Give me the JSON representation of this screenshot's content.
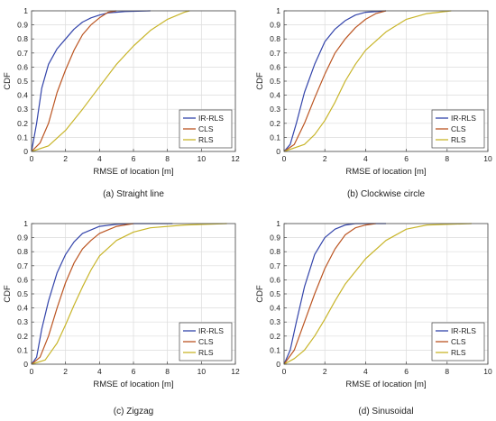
{
  "chart_data": [
    {
      "type": "line",
      "caption": "(a) Straight line",
      "xlabel": "RMSE of location [m]",
      "ylabel": "CDF",
      "xlim": [
        0,
        12
      ],
      "ylim": [
        0,
        1
      ],
      "xticks": [
        0,
        2,
        4,
        6,
        8,
        10,
        12
      ],
      "yticks": [
        0,
        0.1,
        0.2,
        0.3,
        0.4,
        0.5,
        0.6,
        0.7,
        0.8,
        0.9,
        1
      ],
      "grid": true,
      "legend_position": "bottom-right",
      "series": [
        {
          "name": "IR-RLS",
          "color": "#3344aa",
          "points": [
            [
              0,
              0
            ],
            [
              0.3,
              0.2
            ],
            [
              0.6,
              0.45
            ],
            [
              1.0,
              0.62
            ],
            [
              1.5,
              0.73
            ],
            [
              2.0,
              0.8
            ],
            [
              2.5,
              0.87
            ],
            [
              3.0,
              0.92
            ],
            [
              3.5,
              0.95
            ],
            [
              4.0,
              0.97
            ],
            [
              4.5,
              0.985
            ],
            [
              5.5,
              0.995
            ],
            [
              7.0,
              1.0
            ]
          ]
        },
        {
          "name": "CLS",
          "color": "#bb5522",
          "points": [
            [
              0,
              0
            ],
            [
              0.5,
              0.06
            ],
            [
              1.0,
              0.2
            ],
            [
              1.5,
              0.42
            ],
            [
              2.0,
              0.58
            ],
            [
              2.5,
              0.72
            ],
            [
              3.0,
              0.83
            ],
            [
              3.5,
              0.9
            ],
            [
              4.0,
              0.95
            ],
            [
              4.5,
              0.99
            ],
            [
              5.0,
              1.0
            ]
          ]
        },
        {
          "name": "RLS",
          "color": "#c8b52a",
          "points": [
            [
              0,
              0
            ],
            [
              1.0,
              0.04
            ],
            [
              2.0,
              0.15
            ],
            [
              3.0,
              0.3
            ],
            [
              4.0,
              0.46
            ],
            [
              5.0,
              0.62
            ],
            [
              6.0,
              0.75
            ],
            [
              7.0,
              0.86
            ],
            [
              8.0,
              0.94
            ],
            [
              9.0,
              0.99
            ],
            [
              9.3,
              1.0
            ]
          ]
        }
      ]
    },
    {
      "type": "line",
      "caption": "(b) Clockwise circle",
      "xlabel": "RMSE of location [m]",
      "ylabel": "CDF",
      "xlim": [
        0,
        10
      ],
      "ylim": [
        0,
        1
      ],
      "xticks": [
        0,
        2,
        4,
        6,
        8,
        10
      ],
      "yticks": [
        0,
        0.1,
        0.2,
        0.3,
        0.4,
        0.5,
        0.6,
        0.7,
        0.8,
        0.9,
        1
      ],
      "grid": true,
      "legend_position": "bottom-right",
      "series": [
        {
          "name": "IR-RLS",
          "color": "#3344aa",
          "points": [
            [
              0,
              0
            ],
            [
              0.3,
              0.05
            ],
            [
              0.6,
              0.2
            ],
            [
              1.0,
              0.42
            ],
            [
              1.5,
              0.62
            ],
            [
              2.0,
              0.78
            ],
            [
              2.5,
              0.87
            ],
            [
              3.0,
              0.93
            ],
            [
              3.5,
              0.97
            ],
            [
              4.0,
              0.99
            ],
            [
              5.0,
              1.0
            ]
          ]
        },
        {
          "name": "CLS",
          "color": "#bb5522",
          "points": [
            [
              0,
              0
            ],
            [
              0.5,
              0.05
            ],
            [
              1.0,
              0.2
            ],
            [
              1.5,
              0.38
            ],
            [
              2.0,
              0.55
            ],
            [
              2.5,
              0.7
            ],
            [
              3.0,
              0.8
            ],
            [
              3.5,
              0.88
            ],
            [
              4.0,
              0.94
            ],
            [
              4.5,
              0.98
            ],
            [
              5.0,
              1.0
            ]
          ]
        },
        {
          "name": "RLS",
          "color": "#c8b52a",
          "points": [
            [
              0,
              0
            ],
            [
              1.0,
              0.05
            ],
            [
              1.5,
              0.12
            ],
            [
              2.0,
              0.22
            ],
            [
              2.5,
              0.35
            ],
            [
              3.0,
              0.5
            ],
            [
              3.5,
              0.62
            ],
            [
              4.0,
              0.72
            ],
            [
              5.0,
              0.85
            ],
            [
              6.0,
              0.94
            ],
            [
              7.0,
              0.98
            ],
            [
              8.2,
              1.0
            ]
          ]
        }
      ]
    },
    {
      "type": "line",
      "caption": "(c) Zigzag",
      "xlabel": "RMSE of location [m]",
      "ylabel": "CDF",
      "xlim": [
        0,
        12
      ],
      "ylim": [
        0,
        1
      ],
      "xticks": [
        0,
        2,
        4,
        6,
        8,
        10,
        12
      ],
      "yticks": [
        0,
        0.1,
        0.2,
        0.3,
        0.4,
        0.5,
        0.6,
        0.7,
        0.8,
        0.9,
        1
      ],
      "grid": true,
      "legend_position": "bottom-right",
      "series": [
        {
          "name": "IR-RLS",
          "color": "#3344aa",
          "points": [
            [
              0,
              0
            ],
            [
              0.3,
              0.05
            ],
            [
              0.6,
              0.25
            ],
            [
              1.0,
              0.45
            ],
            [
              1.5,
              0.65
            ],
            [
              2.0,
              0.78
            ],
            [
              2.5,
              0.87
            ],
            [
              3.0,
              0.93
            ],
            [
              4.0,
              0.98
            ],
            [
              5.0,
              0.995
            ],
            [
              6.0,
              1.0
            ],
            [
              8.3,
              1.0
            ]
          ]
        },
        {
          "name": "CLS",
          "color": "#bb5522",
          "points": [
            [
              0,
              0
            ],
            [
              0.5,
              0.05
            ],
            [
              1.0,
              0.2
            ],
            [
              1.5,
              0.4
            ],
            [
              2.0,
              0.58
            ],
            [
              2.5,
              0.72
            ],
            [
              3.0,
              0.82
            ],
            [
              3.5,
              0.88
            ],
            [
              4.0,
              0.93
            ],
            [
              5.0,
              0.98
            ],
            [
              6.0,
              1.0
            ]
          ]
        },
        {
          "name": "RLS",
          "color": "#c8b52a",
          "points": [
            [
              0,
              0
            ],
            [
              0.8,
              0.03
            ],
            [
              1.5,
              0.15
            ],
            [
              2.0,
              0.28
            ],
            [
              2.5,
              0.42
            ],
            [
              3.0,
              0.55
            ],
            [
              3.5,
              0.67
            ],
            [
              4.0,
              0.77
            ],
            [
              5.0,
              0.88
            ],
            [
              6.0,
              0.94
            ],
            [
              7.0,
              0.97
            ],
            [
              9.0,
              0.99
            ],
            [
              11.5,
              1.0
            ]
          ]
        }
      ]
    },
    {
      "type": "line",
      "caption": "(d) Sinusoidal",
      "xlabel": "RMSE of location [m]",
      "ylabel": "CDF",
      "xlim": [
        0,
        10
      ],
      "ylim": [
        0,
        1
      ],
      "xticks": [
        0,
        2,
        4,
        6,
        8,
        10
      ],
      "yticks": [
        0,
        0.1,
        0.2,
        0.3,
        0.4,
        0.5,
        0.6,
        0.7,
        0.8,
        0.9,
        1
      ],
      "grid": true,
      "legend_position": "bottom-right",
      "series": [
        {
          "name": "IR-RLS",
          "color": "#3344aa",
          "points": [
            [
              0,
              0
            ],
            [
              0.3,
              0.1
            ],
            [
              0.6,
              0.3
            ],
            [
              1.0,
              0.55
            ],
            [
              1.5,
              0.78
            ],
            [
              2.0,
              0.9
            ],
            [
              2.5,
              0.96
            ],
            [
              3.0,
              0.99
            ],
            [
              3.5,
              1.0
            ],
            [
              5.0,
              1.0
            ]
          ]
        },
        {
          "name": "CLS",
          "color": "#bb5522",
          "points": [
            [
              0,
              0
            ],
            [
              0.5,
              0.1
            ],
            [
              1.0,
              0.3
            ],
            [
              1.5,
              0.5
            ],
            [
              2.0,
              0.68
            ],
            [
              2.5,
              0.82
            ],
            [
              3.0,
              0.92
            ],
            [
              3.5,
              0.97
            ],
            [
              4.0,
              0.99
            ],
            [
              4.5,
              1.0
            ]
          ]
        },
        {
          "name": "RLS",
          "color": "#c8b52a",
          "points": [
            [
              0,
              0
            ],
            [
              0.5,
              0.04
            ],
            [
              1.0,
              0.1
            ],
            [
              1.5,
              0.2
            ],
            [
              2.0,
              0.32
            ],
            [
              2.5,
              0.45
            ],
            [
              3.0,
              0.57
            ],
            [
              4.0,
              0.75
            ],
            [
              5.0,
              0.88
            ],
            [
              6.0,
              0.96
            ],
            [
              7.0,
              0.99
            ],
            [
              9.2,
              1.0
            ]
          ]
        }
      ]
    }
  ]
}
